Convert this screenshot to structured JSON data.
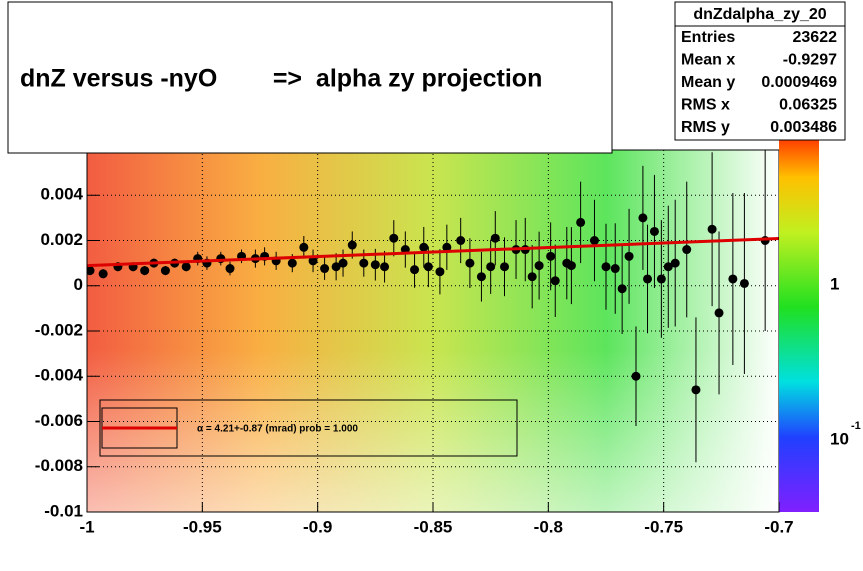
{
  "chart_data": {
    "type": "profile",
    "title": "dnZ versus -nyO        =>  alpha zy projection",
    "stats": {
      "name": "dnZdalpha_zy_20",
      "rows": [
        [
          "Entries",
          "23622"
        ],
        [
          "Mean x",
          "-0.9297"
        ],
        [
          "Mean y",
          "0.0009469"
        ],
        [
          "RMS x",
          "0.06325"
        ],
        [
          "RMS y",
          "0.003486"
        ]
      ]
    },
    "fit_label": "α =    4.21+-0.87 (mrad) prob = 1.000",
    "palette_labels": [
      "1",
      "10",
      "-1"
    ],
    "xlim": [
      -1,
      -0.7
    ],
    "ylim": [
      -0.01,
      0.006
    ],
    "xticks": [
      -1,
      -0.95,
      -0.9,
      -0.85,
      -0.8,
      -0.75,
      -0.7
    ],
    "yticks": [
      -0.01,
      -0.008,
      -0.006,
      -0.004,
      -0.002,
      0,
      0.002,
      0.004
    ],
    "grid": true,
    "color": "#000000",
    "fit_color": "#dd0000",
    "x": [
      -0.9987,
      -0.993,
      -0.9866,
      -0.98,
      -0.975,
      -0.971,
      -0.966,
      -0.962,
      -0.957,
      -0.952,
      -0.948,
      -0.942,
      -0.938,
      -0.933,
      -0.927,
      -0.923,
      -0.918,
      -0.911,
      -0.906,
      -0.902,
      -0.897,
      -0.892,
      -0.889,
      -0.885,
      -0.88,
      -0.875,
      -0.871,
      -0.867,
      -0.862,
      -0.858,
      -0.854,
      -0.852,
      -0.847,
      -0.844,
      -0.838,
      -0.834,
      -0.829,
      -0.825,
      -0.823,
      -0.819,
      -0.814,
      -0.81,
      -0.807,
      -0.804,
      -0.799,
      -0.797,
      -0.792,
      -0.79,
      -0.786,
      -0.78,
      -0.775,
      -0.771,
      -0.768,
      -0.765,
      -0.762,
      -0.759,
      -0.757,
      -0.754,
      -0.751,
      -0.748,
      -0.745,
      -0.74,
      -0.736,
      -0.729,
      -0.726,
      -0.72,
      -0.715,
      -0.706
    ],
    "values": [
      0.00067,
      0.00053,
      0.00084,
      0.00084,
      0.00067,
      0.001,
      0.00067,
      0.001,
      0.00084,
      0.0012,
      0.001,
      0.0012,
      0.00076,
      0.0013,
      0.0012,
      0.0013,
      0.0011,
      0.001,
      0.0017,
      0.0011,
      0.00076,
      0.00084,
      0.001,
      0.0018,
      0.001,
      0.00093,
      0.00084,
      0.0021,
      0.0016,
      0.00071,
      0.0017,
      0.00084,
      0.00062,
      0.0017,
      0.002,
      0.001,
      0.0004,
      0.00084,
      0.0021,
      0.00084,
      0.0016,
      0.0016,
      0.0004,
      0.00089,
      0.0013,
      0.00022,
      0.001,
      0.00089,
      0.0028,
      0.002,
      0.00084,
      0.00076,
      -0.00013,
      0.0013,
      -0.004,
      0.003,
      0.0003,
      0.0024,
      0.0003,
      0.00084,
      0.001,
      0.0016,
      -0.0046,
      0.0025,
      -0.0012,
      0.0003,
      0.0001,
      0.002
    ],
    "errors": [
      0.0002,
      0.0002,
      0.0002,
      0.0002,
      0.0002,
      0.0002,
      0.0002,
      0.0002,
      0.0002,
      0.0003,
      0.0003,
      0.0003,
      0.0003,
      0.0003,
      0.0004,
      0.0004,
      0.0004,
      0.0004,
      0.0005,
      0.0005,
      0.0005,
      0.0006,
      0.0006,
      0.0006,
      0.0006,
      0.0007,
      0.0007,
      0.0008,
      0.0008,
      0.0008,
      0.0009,
      0.0009,
      0.001,
      0.001,
      0.001,
      0.0011,
      0.0011,
      0.0012,
      0.0012,
      0.0013,
      0.0013,
      0.0014,
      0.0014,
      0.0015,
      0.0015,
      0.0016,
      0.0016,
      0.0017,
      0.0018,
      0.0018,
      0.0019,
      0.002,
      0.002,
      0.0021,
      0.0022,
      0.0023,
      0.0024,
      0.0025,
      0.0026,
      0.0027,
      0.0028,
      0.003,
      0.0032,
      0.0034,
      0.0036,
      0.0038,
      0.004,
      0.004
    ],
    "fit": {
      "x": [
        -1,
        -0.7
      ],
      "values": [
        0.00089,
        0.00209
      ]
    }
  }
}
